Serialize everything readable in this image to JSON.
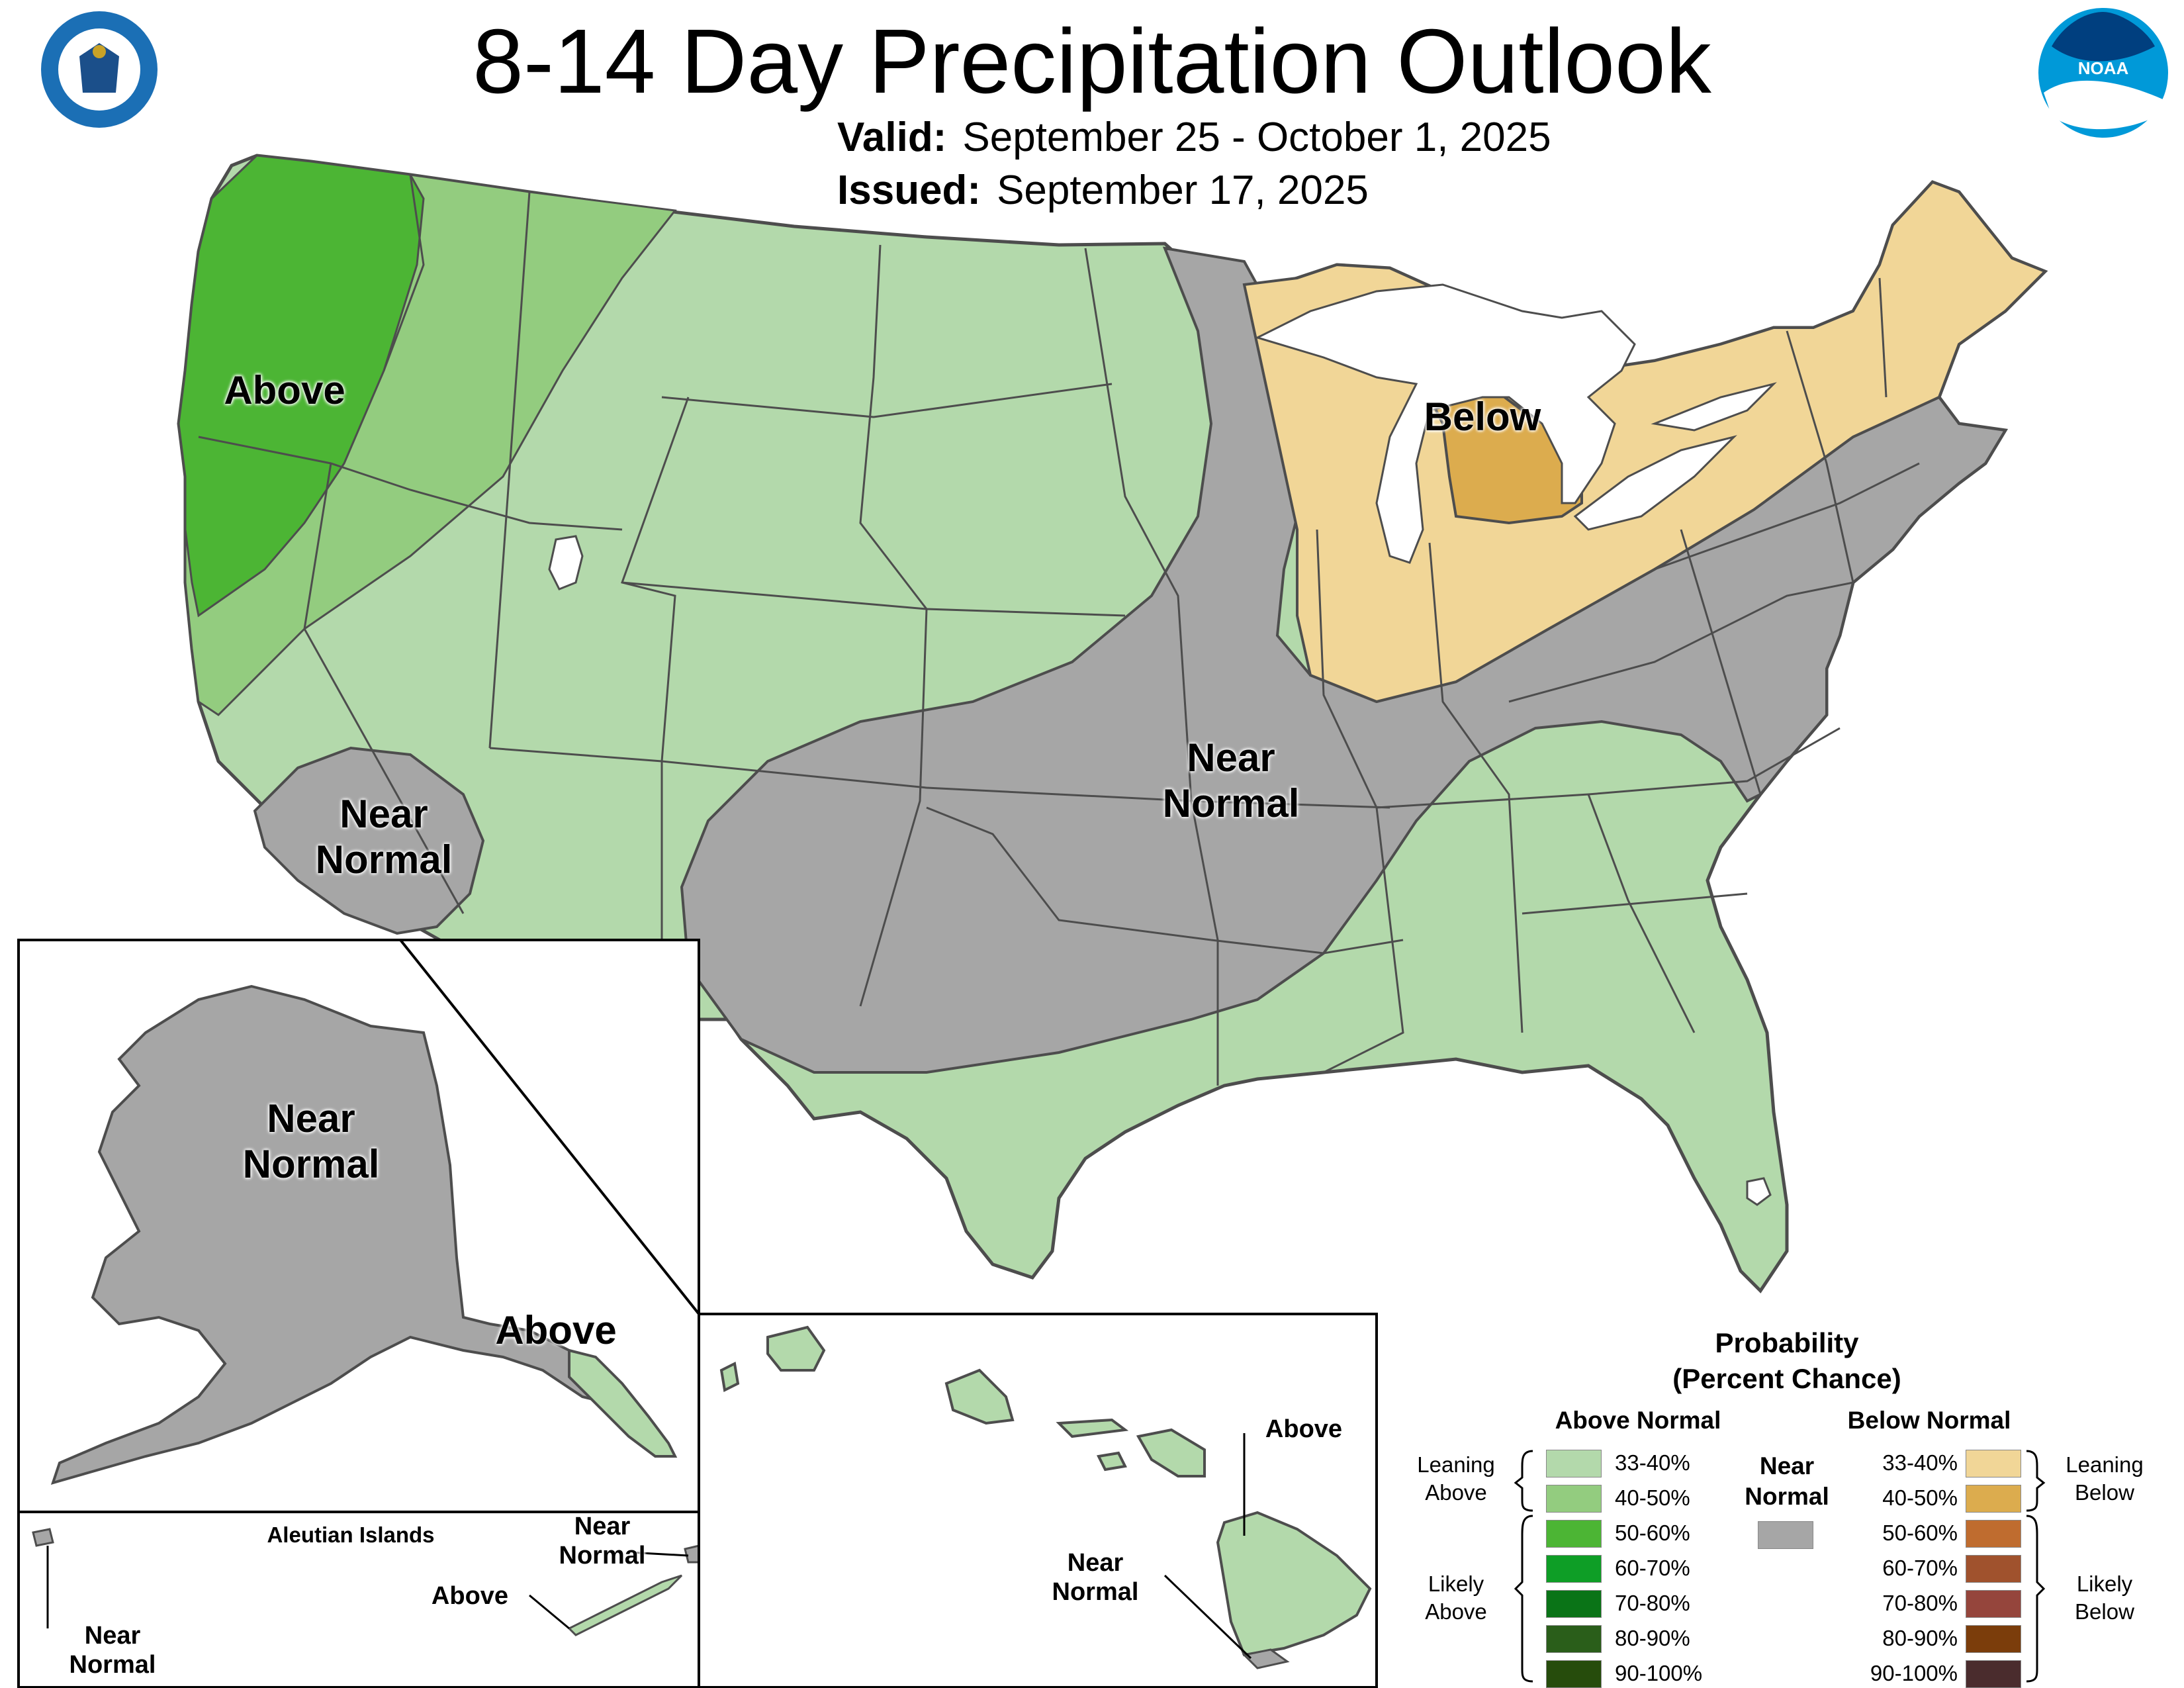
{
  "title": "8-14 Day Precipitation Outlook",
  "valid": {
    "label": "Valid:",
    "value": "September 25 - October 1, 2025"
  },
  "issued": {
    "label": "Issued:",
    "value": "September 17, 2025"
  },
  "logos": {
    "left": "department-of-commerce-seal",
    "right": "noaa-logo",
    "right_text": "NOAA"
  },
  "map_labels": {
    "conus_above": "Above",
    "conus_below": "Below",
    "conus_near_west_1": "Near",
    "conus_near_west_2": "Normal",
    "conus_near_central_1": "Near",
    "conus_near_central_2": "Normal",
    "alaska_near_1": "Near",
    "alaska_near_2": "Normal",
    "alaska_above": "Above",
    "aleutian_title": "Aleutian Islands",
    "aleutian_near_right_1": "Near",
    "aleutian_near_right_2": "Normal",
    "aleutian_above": "Above",
    "aleutian_near_left_1": "Near",
    "aleutian_near_left_2": "Normal",
    "hawaii_above": "Above",
    "hawaii_near_1": "Near",
    "hawaii_near_2": "Normal"
  },
  "legend": {
    "title_1": "Probability",
    "title_2": "(Percent Chance)",
    "above_head": "Above Normal",
    "below_head": "Below Normal",
    "near_head_1": "Near",
    "near_head_2": "Normal",
    "near_color": "#a6a6a6",
    "above_items": [
      {
        "label": "33-40%",
        "color": "#b3d9ab"
      },
      {
        "label": "40-50%",
        "color": "#93cc7f"
      },
      {
        "label": "50-60%",
        "color": "#4cb534"
      },
      {
        "label": "60-70%",
        "color": "#0e9e26"
      },
      {
        "label": "70-80%",
        "color": "#0a7417"
      },
      {
        "label": "80-90%",
        "color": "#2a5e1a"
      },
      {
        "label": "90-100%",
        "color": "#264c0c"
      }
    ],
    "below_items": [
      {
        "label": "33-40%",
        "color": "#f1d697"
      },
      {
        "label": "40-50%",
        "color": "#dcac4e"
      },
      {
        "label": "50-60%",
        "color": "#bf6c2f"
      },
      {
        "label": "60-70%",
        "color": "#a0522d"
      },
      {
        "label": "70-80%",
        "color": "#95453c"
      },
      {
        "label": "80-90%",
        "color": "#7b3d0b"
      },
      {
        "label": "90-100%",
        "color": "#4a2c2d"
      }
    ],
    "leaning_above_1": "Leaning",
    "leaning_above_2": "Above",
    "likely_above_1": "Likely",
    "likely_above_2": "Above",
    "leaning_below_1": "Leaning",
    "leaning_below_2": "Below",
    "likely_below_1": "Likely",
    "likely_below_2": "Below"
  }
}
